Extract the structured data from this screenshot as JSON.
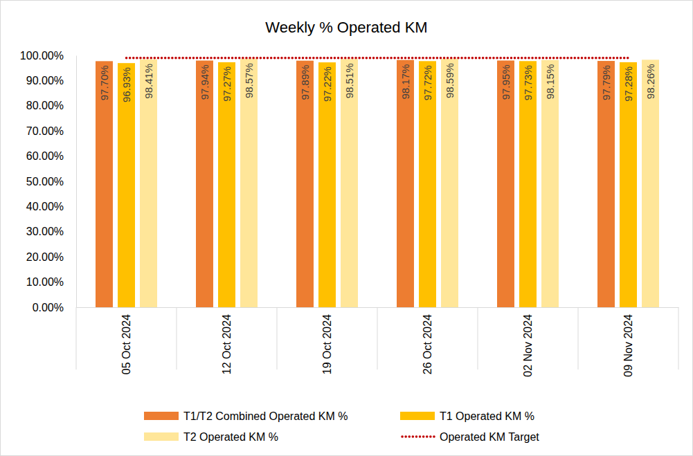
{
  "chart_data": {
    "type": "bar",
    "title": "Weekly % Operated KM",
    "categories": [
      "05 Oct 2024",
      "12 Oct 2024",
      "19 Oct 2024",
      "26 Oct 2024",
      "02 Nov 2024",
      "09 Nov 2024"
    ],
    "ylim": [
      0,
      100
    ],
    "yticks": [
      {
        "value": 0,
        "label": "0.00%"
      },
      {
        "value": 10,
        "label": "10.00%"
      },
      {
        "value": 20,
        "label": "20.00%"
      },
      {
        "value": 30,
        "label": "30.00%"
      },
      {
        "value": 40,
        "label": "40.00%"
      },
      {
        "value": 50,
        "label": "50.00%"
      },
      {
        "value": 60,
        "label": "60.00%"
      },
      {
        "value": 70,
        "label": "70.00%"
      },
      {
        "value": 80,
        "label": "80.00%"
      },
      {
        "value": 90,
        "label": "90.00%"
      },
      {
        "value": 100,
        "label": "100.00%"
      }
    ],
    "grid": false,
    "legend": "bottom",
    "data_labels": true,
    "series": [
      {
        "name": "T1/T2 Combined Operated KM %",
        "color": "#ED7D31",
        "values": [
          97.7,
          97.94,
          97.89,
          98.17,
          97.95,
          97.79
        ],
        "value_labels": [
          "97.70%",
          "97.94%",
          "97.89%",
          "98.17%",
          "97.95%",
          "97.79%"
        ]
      },
      {
        "name": "T1 Operated KM %",
        "color": "#FFC000",
        "values": [
          96.93,
          97.27,
          97.22,
          97.72,
          97.73,
          97.28
        ],
        "value_labels": [
          "96.93%",
          "97.27%",
          "97.22%",
          "97.72%",
          "97.73%",
          "97.28%"
        ]
      },
      {
        "name": "T2 Operated KM %",
        "color": "#FFE699",
        "values": [
          98.41,
          98.57,
          98.51,
          98.59,
          98.15,
          98.26
        ],
        "value_labels": [
          "98.41%",
          "98.57%",
          "98.51%",
          "98.59%",
          "98.15%",
          "98.26%"
        ]
      },
      {
        "name": "Operated KM Target",
        "type": "line",
        "color": "#C00000",
        "line_style": "dotted",
        "values": [
          99,
          99,
          99,
          99,
          99,
          99
        ]
      }
    ]
  }
}
